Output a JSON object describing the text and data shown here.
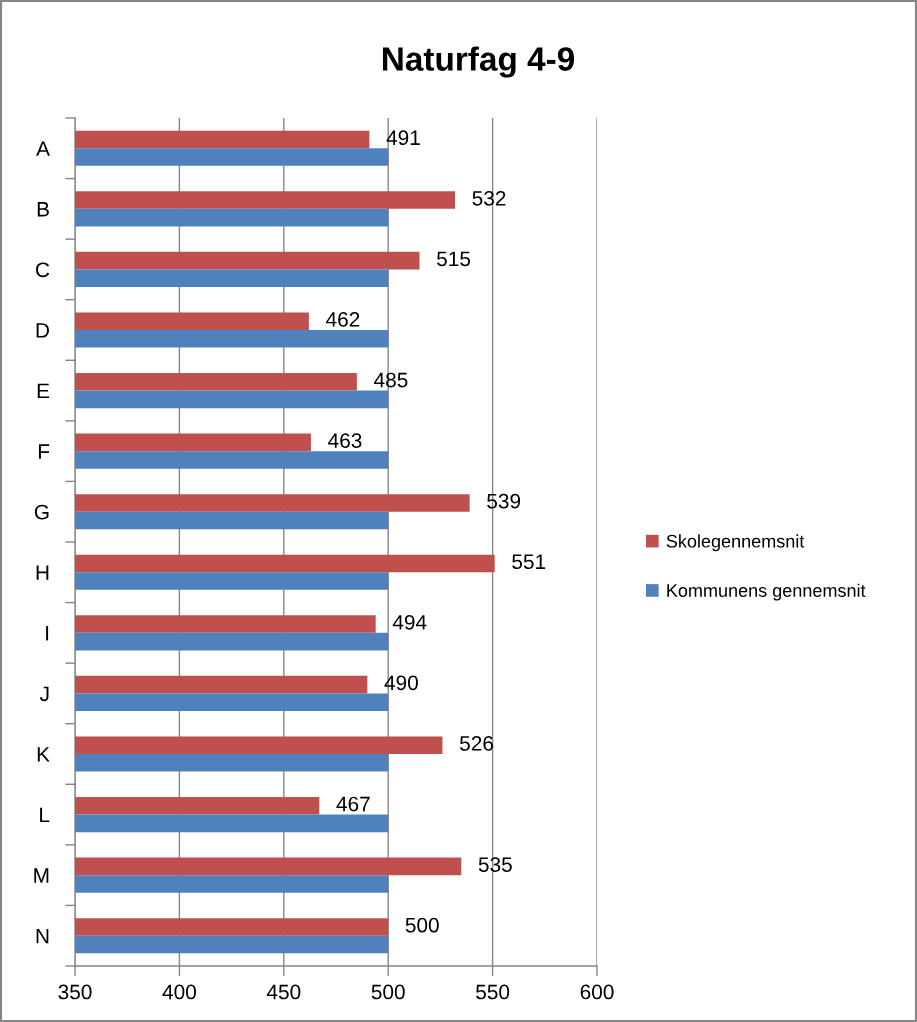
{
  "chart_data": {
    "type": "bar",
    "orientation": "horizontal",
    "title": "Naturfag 4-9",
    "categories": [
      "A",
      "B",
      "C",
      "D",
      "E",
      "F",
      "G",
      "H",
      "I",
      "J",
      "K",
      "L",
      "M",
      "N"
    ],
    "series": [
      {
        "name": "Skolegennemsnit",
        "color": "#c0504d",
        "values": [
          491,
          532,
          515,
          462,
          485,
          463,
          539,
          551,
          494,
          490,
          526,
          467,
          535,
          500
        ],
        "value_labels": [
          "491",
          "532",
          "515",
          "462",
          "485",
          "463",
          "539",
          "551",
          "494",
          "490",
          "526",
          "467",
          "535",
          "500"
        ]
      },
      {
        "name": "Kommunens gennemsnit",
        "color": "#4f81bd",
        "values": [
          500,
          500,
          500,
          500,
          500,
          500,
          500,
          500,
          500,
          500,
          500,
          500,
          500,
          500
        ]
      }
    ],
    "xlim": [
      350,
      600
    ],
    "xticks": [
      350,
      400,
      450,
      500,
      550,
      600
    ],
    "grid": "x",
    "legend": "right"
  }
}
